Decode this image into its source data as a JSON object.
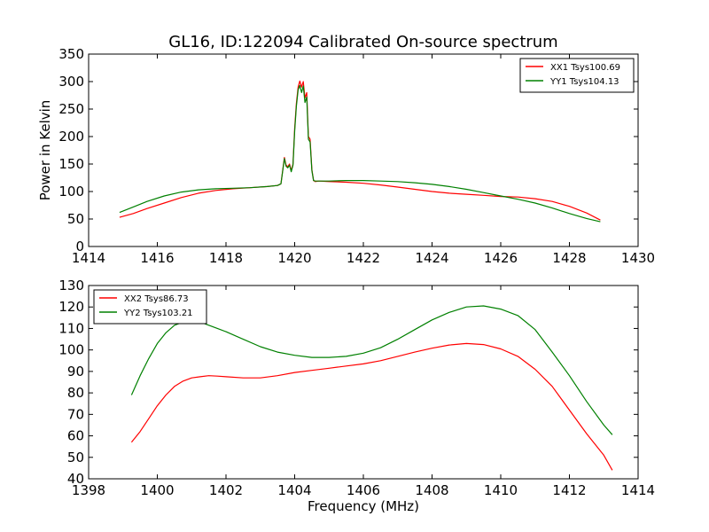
{
  "title": "GL16, ID:122094 Calibrated On-source spectrum",
  "chart_data": [
    {
      "type": "line",
      "title": "GL16, ID:122094 Calibrated On-source spectrum",
      "xlabel": "",
      "ylabel": "Power in Kelvin",
      "xlim": [
        1414,
        1430
      ],
      "ylim": [
        0,
        350
      ],
      "xticks": [
        "1414",
        "1416",
        "1418",
        "1420",
        "1422",
        "1424",
        "1426",
        "1428",
        "1430"
      ],
      "yticks": [
        "0",
        "50",
        "100",
        "150",
        "200",
        "250",
        "300",
        "350"
      ],
      "legend_position": "top-right",
      "grid": false,
      "series": [
        {
          "name": "XX1 Tsys100.69",
          "color": "#ff0000",
          "x": [
            1414.9,
            1415.3,
            1415.7,
            1416.2,
            1416.7,
            1417.2,
            1417.7,
            1418.2,
            1418.7,
            1419.2,
            1419.5,
            1419.6,
            1419.7,
            1419.75,
            1419.8,
            1419.85,
            1419.9,
            1419.95,
            1420.0,
            1420.05,
            1420.1,
            1420.15,
            1420.2,
            1420.25,
            1420.3,
            1420.35,
            1420.4,
            1420.45,
            1420.5,
            1420.55,
            1420.6,
            1420.7,
            1421.0,
            1421.5,
            1422.0,
            1422.5,
            1423.0,
            1423.5,
            1424.0,
            1424.5,
            1425.0,
            1425.5,
            1426.0,
            1426.5,
            1427.0,
            1427.5,
            1428.0,
            1428.5,
            1428.9
          ],
          "y": [
            53,
            60,
            69,
            79,
            89,
            97,
            102,
            105,
            107,
            109,
            111,
            114,
            162,
            148,
            145,
            150,
            138,
            150,
            215,
            260,
            290,
            301,
            290,
            300,
            270,
            280,
            200,
            195,
            140,
            120,
            118,
            119,
            118,
            117,
            115,
            112,
            108,
            104,
            100,
            97,
            95,
            93,
            91,
            90,
            87,
            82,
            73,
            61,
            48
          ]
        },
        {
          "name": "YY1 Tsys104.13",
          "color": "#008000",
          "x": [
            1414.9,
            1415.3,
            1415.7,
            1416.2,
            1416.7,
            1417.2,
            1417.7,
            1418.2,
            1418.7,
            1419.2,
            1419.5,
            1419.6,
            1419.7,
            1419.75,
            1419.8,
            1419.85,
            1419.9,
            1419.95,
            1420.0,
            1420.05,
            1420.1,
            1420.15,
            1420.2,
            1420.25,
            1420.3,
            1420.35,
            1420.4,
            1420.45,
            1420.5,
            1420.55,
            1420.6,
            1420.7,
            1421.0,
            1421.5,
            1422.0,
            1422.5,
            1423.0,
            1423.5,
            1424.0,
            1424.5,
            1425.0,
            1425.5,
            1426.0,
            1426.5,
            1427.0,
            1427.5,
            1428.0,
            1428.5,
            1428.9
          ],
          "y": [
            62,
            72,
            82,
            92,
            99,
            103,
            105,
            106,
            107,
            109,
            111,
            114,
            160,
            146,
            143,
            148,
            136,
            148,
            210,
            255,
            285,
            293,
            280,
            292,
            262,
            272,
            195,
            190,
            138,
            120,
            119,
            119,
            119,
            120,
            120,
            119,
            118,
            116,
            113,
            109,
            104,
            98,
            92,
            86,
            79,
            70,
            60,
            51,
            45
          ]
        }
      ]
    },
    {
      "type": "line",
      "title": "",
      "xlabel": "Frequency (MHz)",
      "ylabel": "",
      "xlim": [
        1398,
        1414
      ],
      "ylim": [
        40,
        130
      ],
      "xticks": [
        "1398",
        "1400",
        "1402",
        "1404",
        "1406",
        "1408",
        "1410",
        "1412",
        "1414"
      ],
      "yticks": [
        "40",
        "50",
        "60",
        "70",
        "80",
        "90",
        "100",
        "110",
        "120",
        "130"
      ],
      "legend_position": "top-left",
      "grid": false,
      "series": [
        {
          "name": "XX2 Tsys86.73",
          "color": "#ff0000",
          "x": [
            1399.25,
            1399.5,
            1399.75,
            1400.0,
            1400.25,
            1400.5,
            1400.75,
            1401.0,
            1401.25,
            1401.5,
            1401.75,
            1402.0,
            1402.5,
            1403.0,
            1403.5,
            1404.0,
            1404.5,
            1405.0,
            1405.5,
            1406.0,
            1406.5,
            1407.0,
            1407.5,
            1408.0,
            1408.5,
            1409.0,
            1409.5,
            1410.0,
            1410.5,
            1411.0,
            1411.5,
            1412.0,
            1412.5,
            1413.0,
            1413.25
          ],
          "y": [
            57,
            62,
            68,
            74,
            79,
            83,
            85.5,
            87,
            87.5,
            88,
            87.8,
            87.5,
            87,
            87,
            88,
            89.5,
            90.5,
            91.5,
            92.5,
            93.5,
            95,
            97,
            99,
            100.8,
            102.3,
            103,
            102.5,
            100.5,
            97,
            91,
            83,
            72,
            61,
            51,
            44
          ]
        },
        {
          "name": "YY2 Tsys103.21",
          "color": "#008000",
          "x": [
            1399.25,
            1399.5,
            1399.75,
            1400.0,
            1400.25,
            1400.5,
            1400.75,
            1401.0,
            1401.25,
            1401.5,
            1401.75,
            1402.0,
            1402.5,
            1403.0,
            1403.5,
            1404.0,
            1404.5,
            1405.0,
            1405.5,
            1406.0,
            1406.5,
            1407.0,
            1407.5,
            1408.0,
            1408.5,
            1409.0,
            1409.5,
            1410.0,
            1410.5,
            1411.0,
            1411.5,
            1412.0,
            1412.5,
            1413.0,
            1413.25
          ],
          "y": [
            79,
            88,
            96,
            103,
            108,
            111.5,
            113,
            113.5,
            113,
            111.5,
            110,
            108.5,
            105,
            101.5,
            99,
            97.5,
            96.5,
            96.5,
            97,
            98.5,
            101,
            105,
            109.5,
            114,
            117.5,
            120,
            120.5,
            119,
            116,
            109.5,
            99,
            88,
            76,
            65,
            60.5
          ]
        }
      ]
    }
  ]
}
